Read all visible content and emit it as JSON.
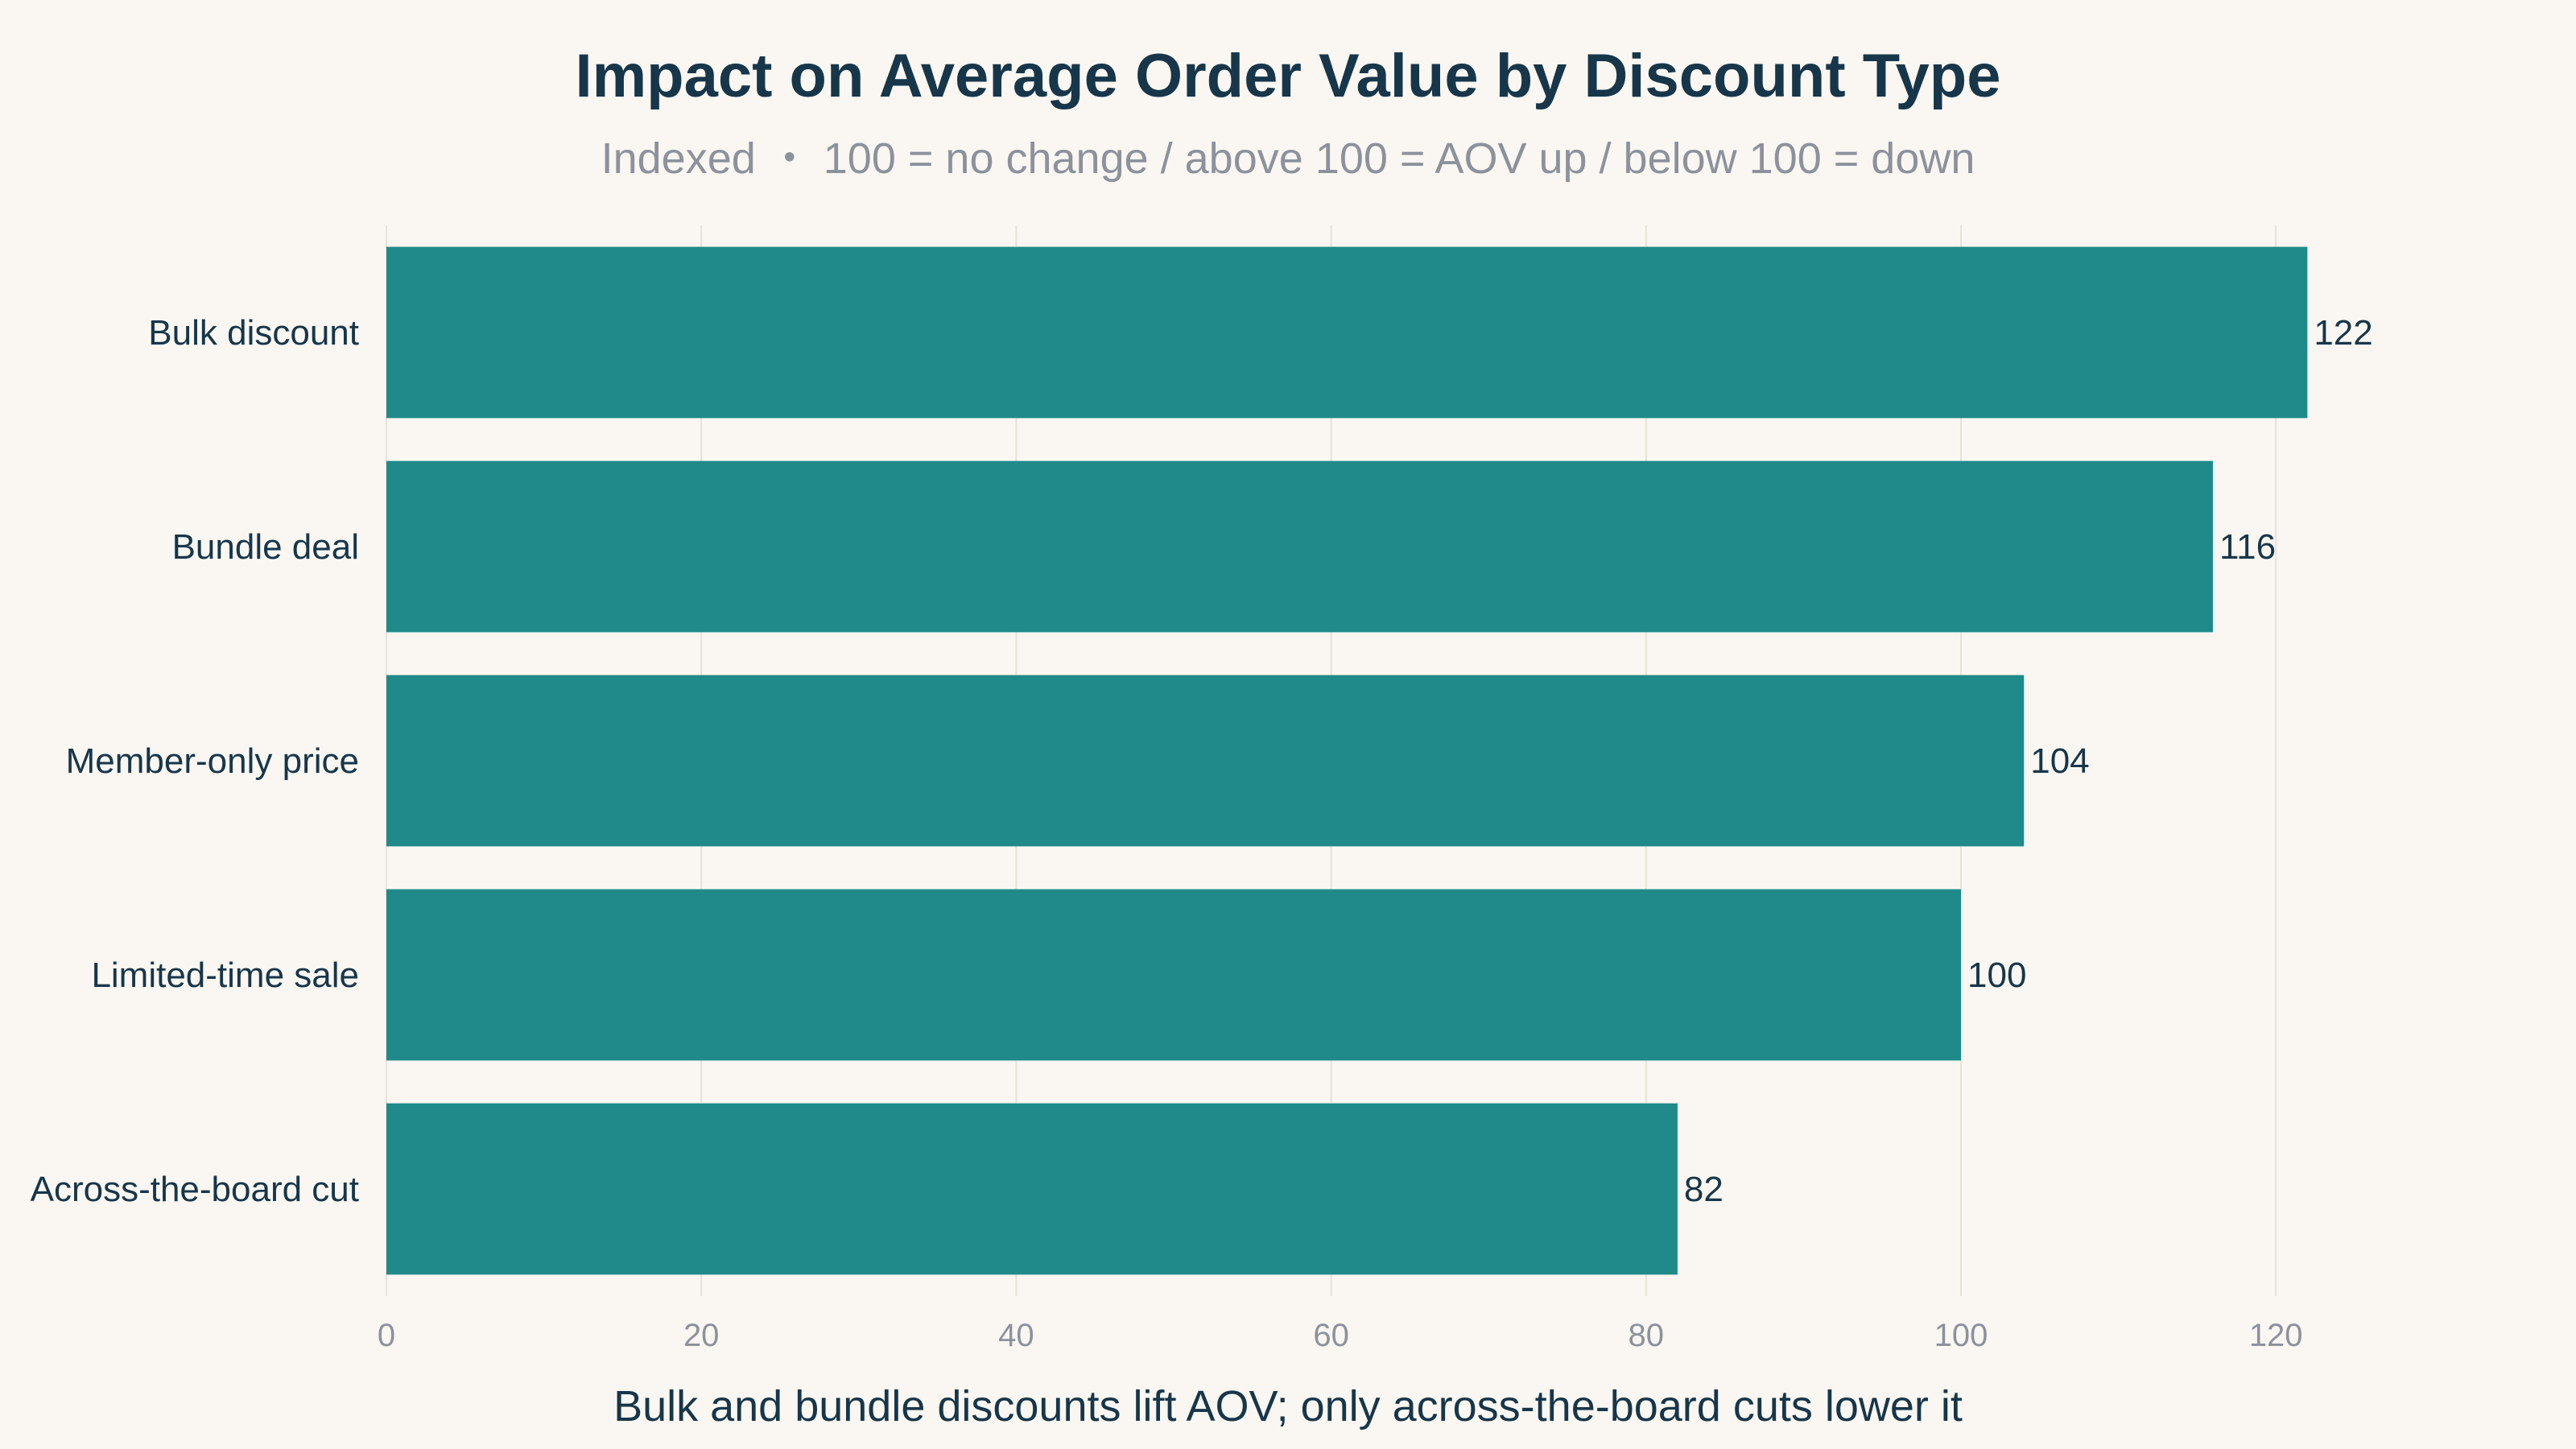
{
  "colors": {
    "background": "#faf7f2",
    "bar": "#1f8a89",
    "title": "#17364a",
    "muted": "#8c929c",
    "grid": "#e7e2da"
  },
  "chart_data": {
    "type": "bar",
    "orientation": "horizontal",
    "title": "Impact on Average Order Value by Discount Type",
    "subtitle": "Indexed ・ 100 = no change / above 100 = AOV up / below 100 = down",
    "xlabel": "Bulk and bundle discounts lift AOV; only across-the-board cuts lower it",
    "ylabel": "",
    "categories": [
      "Bulk discount",
      "Bundle deal",
      "Member-only price",
      "Limited-time sale",
      "Across-the-board cut"
    ],
    "values": [
      122,
      116,
      104,
      100,
      82
    ],
    "value_labels": [
      "122",
      "116",
      "104",
      "100",
      "82"
    ],
    "xlim": [
      0,
      125
    ],
    "xticks": [
      0,
      20,
      40,
      60,
      80,
      100,
      120
    ],
    "xtick_labels": [
      "0",
      "20",
      "40",
      "60",
      "80",
      "100",
      "120"
    ],
    "grid": true,
    "legend": "none"
  }
}
